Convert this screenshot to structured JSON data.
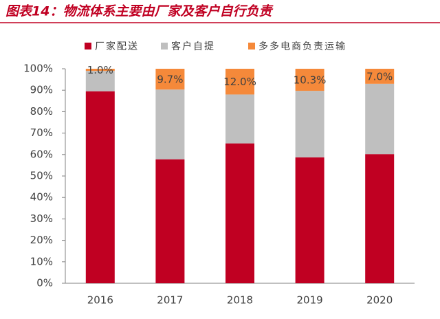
{
  "chart_data": {
    "type": "bar",
    "stacked": true,
    "title": "图表14：物流体系主要由厂家及客户自行负责",
    "categories": [
      "2016",
      "2017",
      "2018",
      "2019",
      "2020"
    ],
    "series": [
      {
        "name": "厂家配送",
        "color": "#c00022",
        "values": [
          89.5,
          57.8,
          65.2,
          58.7,
          60.2
        ]
      },
      {
        "name": "客户自提",
        "color": "#bfbfbf",
        "values": [
          9.5,
          32.5,
          22.8,
          31.0,
          32.8
        ]
      },
      {
        "name": "多多电商负责运输",
        "color": "#f5893a",
        "values": [
          1.0,
          9.7,
          12.0,
          10.3,
          7.0
        ],
        "value_labels": [
          "1.0%",
          "9.7%",
          "12.0%",
          "10.3%",
          "7.0%"
        ]
      }
    ],
    "ylim": [
      0,
      100
    ],
    "yticks": [
      {
        "value": 0,
        "label": "0%"
      },
      {
        "value": 10,
        "label": "10%"
      },
      {
        "value": 20,
        "label": "20%"
      },
      {
        "value": 30,
        "label": "30%"
      },
      {
        "value": 40,
        "label": "40%"
      },
      {
        "value": 50,
        "label": "50%"
      },
      {
        "value": 60,
        "label": "60%"
      },
      {
        "value": 70,
        "label": "70%"
      },
      {
        "value": 80,
        "label": "80%"
      },
      {
        "value": 90,
        "label": "90%"
      },
      {
        "value": 100,
        "label": "100%"
      }
    ],
    "grid": false,
    "legend": "top"
  }
}
